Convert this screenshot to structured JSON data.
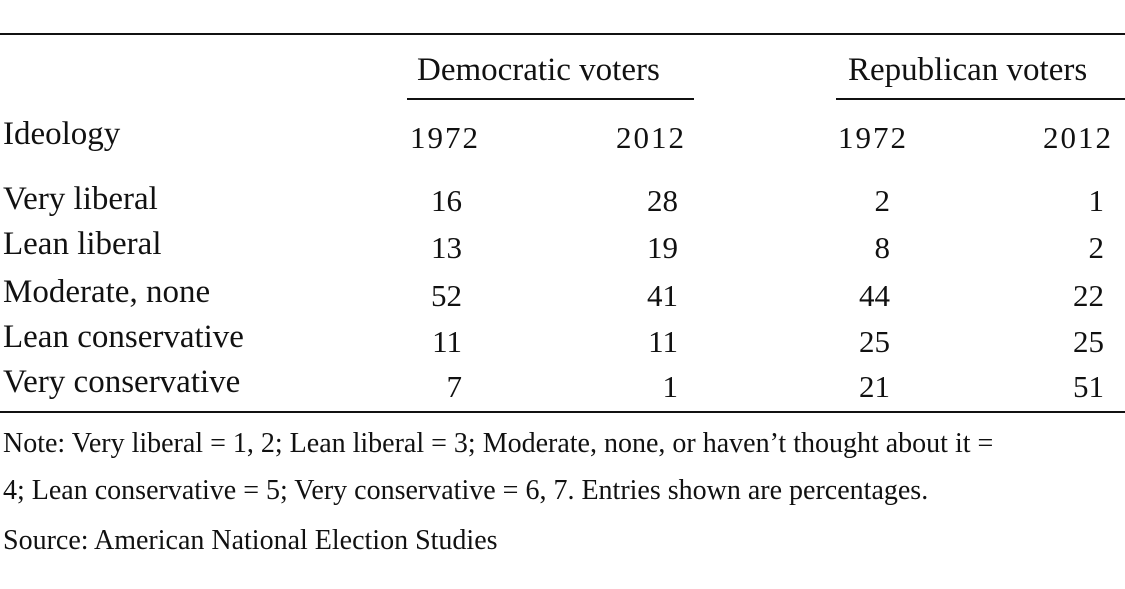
{
  "table": {
    "group_headers": {
      "democratic": "Democratic voters",
      "republican": "Republican voters"
    },
    "stub_header": "Ideology",
    "years": [
      "1972",
      "2012",
      "1972",
      "2012"
    ],
    "rows": [
      {
        "label": "Very liberal",
        "values": [
          "16",
          "28",
          "2",
          "1"
        ]
      },
      {
        "label": "Lean liberal",
        "values": [
          "13",
          "19",
          "8",
          "2"
        ]
      },
      {
        "label": "Moderate, none",
        "values": [
          "52",
          "41",
          "44",
          "22"
        ]
      },
      {
        "label": "Lean conservative",
        "values": [
          "11",
          "11",
          "25",
          "25"
        ]
      },
      {
        "label": "Very conservative",
        "values": [
          "7",
          "1",
          "21",
          "51"
        ]
      }
    ]
  },
  "note": {
    "line1": "Note: Very liberal = 1, 2; Lean liberal = 3; Moderate, none, or haven’t thought about it =",
    "line2": "4; Lean conservative = 5; Very conservative = 6, 7. Entries shown are percentages."
  },
  "source": "Source: American National Election Studies"
}
